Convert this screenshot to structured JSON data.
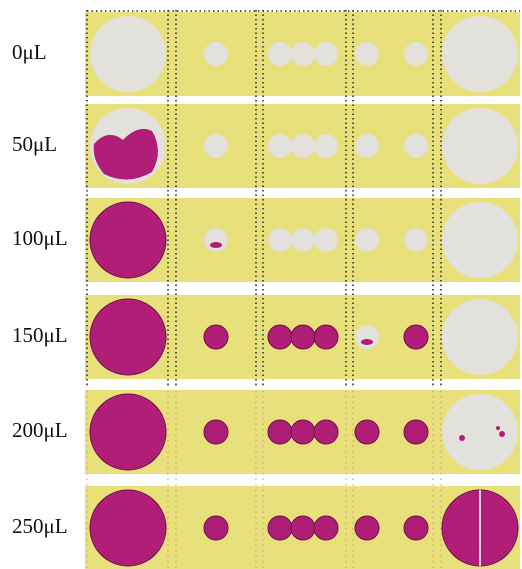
{
  "rows": [
    {
      "label": "0μL"
    },
    {
      "label": "50μL"
    },
    {
      "label": "100μL"
    },
    {
      "label": "150μL"
    },
    {
      "label": "200μL"
    },
    {
      "label": "250μL"
    }
  ]
}
